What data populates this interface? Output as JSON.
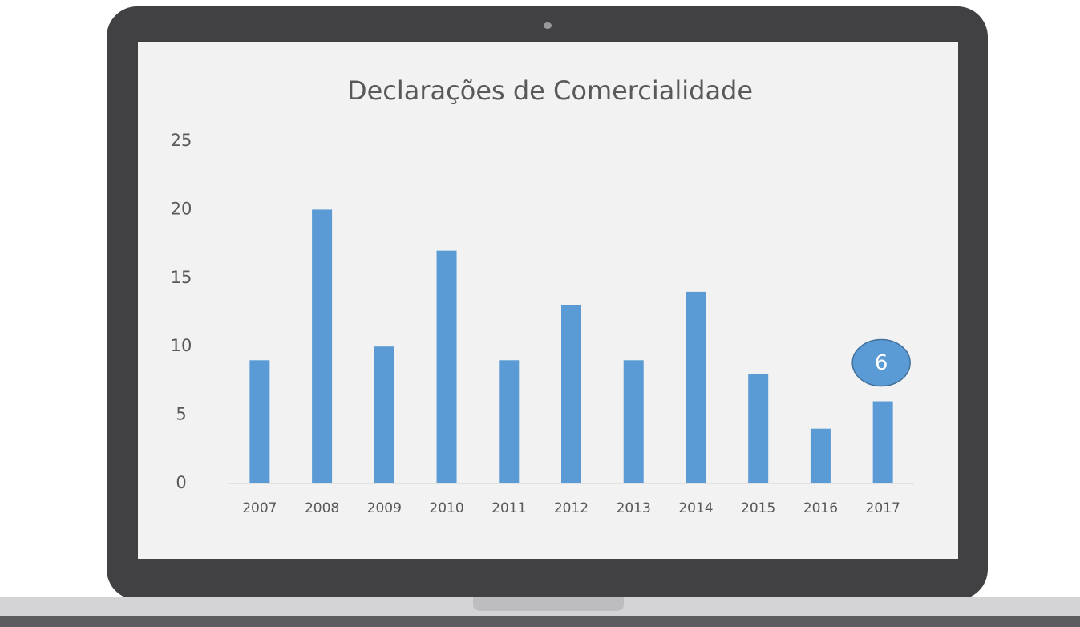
{
  "chart_data": {
    "type": "bar",
    "title": "Declarações de Comercialidade",
    "categories": [
      "2007",
      "2008",
      "2009",
      "2010",
      "2011",
      "2012",
      "2013",
      "2014",
      "2015",
      "2016",
      "2017"
    ],
    "values": [
      9,
      20,
      10,
      17,
      9,
      13,
      9,
      14,
      8,
      4,
      6
    ],
    "color": "#5b9bd5",
    "ylim": [
      0,
      25
    ],
    "yticks": [
      0,
      5,
      10,
      15,
      20,
      25
    ],
    "grid": false
  }
}
